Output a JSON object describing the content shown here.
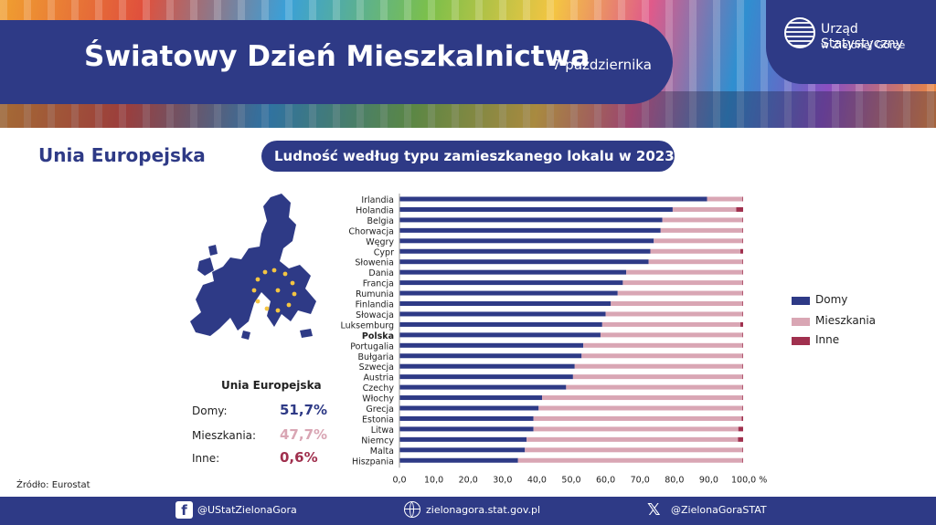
{
  "header": {
    "title": "Światowy Dzień Mieszkalnictwa",
    "date": "7 października",
    "logo_line1": "Urząd Statystyczny",
    "logo_line2": "w Zielonej Górze"
  },
  "region_title": "Unia Europejska",
  "eu_summary": {
    "heading": "Unia Europejska",
    "rows": [
      {
        "label": "Domy:",
        "value": "51,7%",
        "color": "#2e3a86"
      },
      {
        "label": "Mieszkania:",
        "value": "47,7%",
        "color": "#d9a6b4"
      },
      {
        "label": "Inne:",
        "value": "0,6%",
        "color": "#a0304e"
      }
    ]
  },
  "legend": [
    {
      "label": "Domy",
      "color": "#2e3a86"
    },
    {
      "label": "Mieszkania",
      "color": "#d9a6b4"
    },
    {
      "label": "Inne",
      "color": "#a0304e"
    }
  ],
  "source": "Źródło: Eurostat",
  "footer": {
    "facebook": "@UStatZielonaGora",
    "website": "zielonagora.stat.gov.pl",
    "x": "@ZielonaGoraSTAT"
  },
  "chart_data": {
    "type": "bar",
    "orientation": "horizontal",
    "stacked": true,
    "title": "Ludność według typu zamieszkanego lokalu w 2023 r.",
    "categories": [
      "Irlandia",
      "Holandia",
      "Belgia",
      "Chorwacja",
      "Węgry",
      "Cypr",
      "Słowenia",
      "Dania",
      "Francja",
      "Rumunia",
      "Finlandia",
      "Słowacja",
      "Luksemburg",
      "Polska",
      "Portugalia",
      "Bułgaria",
      "Szwecja",
      "Austria",
      "Czechy",
      "Włochy",
      "Grecja",
      "Estonia",
      "Litwa",
      "Niemcy",
      "Malta",
      "Hiszpania"
    ],
    "highlight": "Polska",
    "series": [
      {
        "name": "Domy",
        "color": "#2e3a86",
        "values": [
          89.5,
          79.5,
          76.5,
          76.0,
          74.0,
          73.0,
          72.5,
          66.0,
          65.0,
          63.5,
          61.5,
          60.0,
          59.0,
          58.5,
          53.5,
          53.0,
          51.0,
          50.5,
          48.5,
          41.5,
          40.5,
          39.0,
          39.0,
          37.0,
          36.5,
          34.5
        ]
      },
      {
        "name": "Mieszkania",
        "color": "#d9a6b4",
        "values": [
          10.3,
          18.5,
          23.3,
          23.8,
          25.8,
          26.2,
          27.3,
          33.8,
          34.8,
          36.3,
          38.3,
          39.8,
          40.2,
          41.3,
          46.3,
          46.8,
          48.8,
          49.3,
          51.3,
          58.3,
          59.3,
          60.6,
          59.6,
          61.5,
          63.3,
          65.3
        ]
      },
      {
        "name": "Inne",
        "color": "#a0304e",
        "values": [
          0.2,
          2.0,
          0.2,
          0.2,
          0.2,
          0.8,
          0.2,
          0.2,
          0.2,
          0.2,
          0.2,
          0.2,
          0.8,
          0.2,
          0.2,
          0.2,
          0.2,
          0.2,
          0.2,
          0.2,
          0.2,
          0.4,
          1.4,
          1.5,
          0.2,
          0.2
        ]
      }
    ],
    "xlim": [
      0,
      100
    ],
    "xticks": [
      "0,0",
      "10,0",
      "20,0",
      "30,0",
      "40,0",
      "50,0",
      "60,0",
      "70,0",
      "80,0",
      "90,0",
      "100,0 %"
    ]
  }
}
